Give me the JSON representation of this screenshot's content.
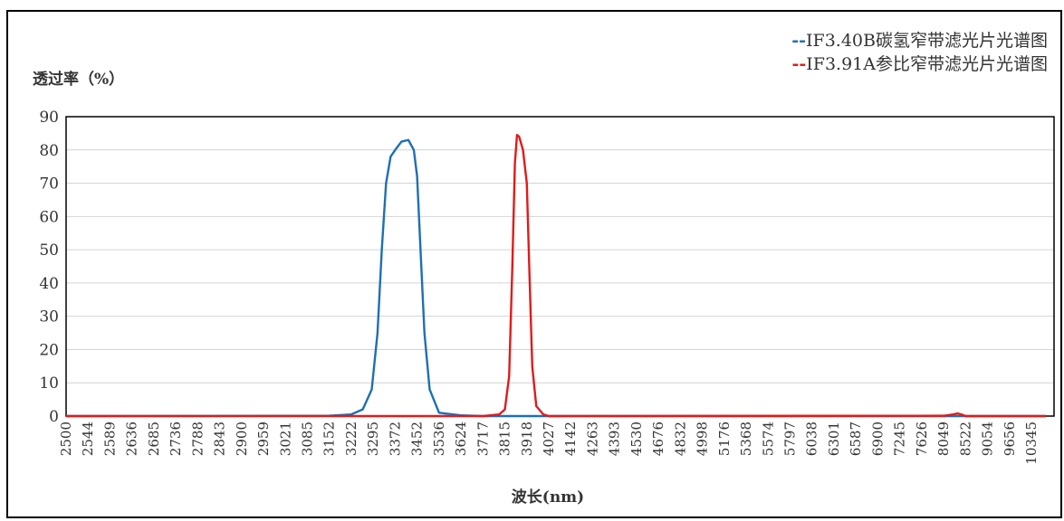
{
  "chart_data": {
    "type": "line",
    "ylabel": "透过率（%）",
    "xlabel": "波长(nm)",
    "ylim": [
      0,
      90
    ],
    "yticks": [
      0,
      10,
      20,
      30,
      40,
      50,
      60,
      70,
      80,
      90
    ],
    "grid": true,
    "legend_position": "top-right",
    "x_categories": [
      "2500",
      "2544",
      "2589",
      "2636",
      "2685",
      "2736",
      "2788",
      "2843",
      "2900",
      "2959",
      "3021",
      "3085",
      "3152",
      "3222",
      "3295",
      "3372",
      "3452",
      "3536",
      "3624",
      "3717",
      "3815",
      "3918",
      "4027",
      "4142",
      "4263",
      "4393",
      "4530",
      "4676",
      "4832",
      "4998",
      "5176",
      "5368",
      "5574",
      "5797",
      "6038",
      "6301",
      "6587",
      "6900",
      "7245",
      "7626",
      "8049",
      "8522",
      "9054",
      "9656",
      "10345"
    ],
    "series": [
      {
        "name": "IF3.40B碳氢窄带滤光片光谱图",
        "legend_prefix": "--",
        "color": "#1f6fb2",
        "points": [
          [
            2500,
            0
          ],
          [
            3152,
            0.1
          ],
          [
            3222,
            0.5
          ],
          [
            3260,
            2
          ],
          [
            3290,
            8
          ],
          [
            3310,
            25
          ],
          [
            3325,
            50
          ],
          [
            3340,
            70
          ],
          [
            3356,
            78
          ],
          [
            3372,
            80
          ],
          [
            3395,
            82.5
          ],
          [
            3420,
            83
          ],
          [
            3440,
            80
          ],
          [
            3452,
            72
          ],
          [
            3465,
            50
          ],
          [
            3480,
            25
          ],
          [
            3500,
            8
          ],
          [
            3536,
            1
          ],
          [
            3624,
            0.2
          ],
          [
            3717,
            0
          ],
          [
            10800,
            0
          ]
        ]
      },
      {
        "name": "IF3.91A参比窄带滤光片光谱图",
        "legend_prefix": "--",
        "color": "#e01b1b",
        "points": [
          [
            2500,
            0
          ],
          [
            3717,
            0
          ],
          [
            3790,
            0.5
          ],
          [
            3815,
            2
          ],
          [
            3835,
            12
          ],
          [
            3850,
            45
          ],
          [
            3862,
            76
          ],
          [
            3872,
            84.5
          ],
          [
            3882,
            84
          ],
          [
            3900,
            80
          ],
          [
            3918,
            70
          ],
          [
            3930,
            45
          ],
          [
            3945,
            15
          ],
          [
            3965,
            3
          ],
          [
            4000,
            0.5
          ],
          [
            4027,
            0
          ],
          [
            8049,
            0.1
          ],
          [
            8250,
            0.5
          ],
          [
            8350,
            0.8
          ],
          [
            8450,
            0.4
          ],
          [
            8522,
            0
          ],
          [
            10800,
            0
          ]
        ]
      }
    ]
  }
}
